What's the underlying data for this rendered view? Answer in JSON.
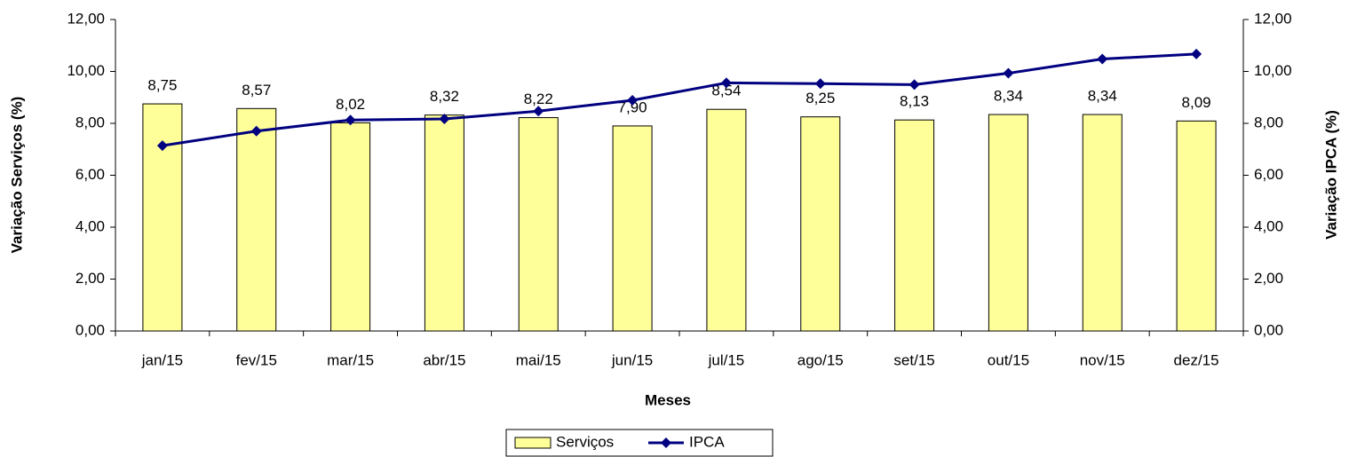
{
  "chart_data": {
    "type": "bar_line",
    "x_label": "Meses",
    "y_label": "Variação Serviços (%)",
    "y2_label": "Variação IPCA (%)",
    "categories": [
      "jan/15",
      "fev/15",
      "mar/15",
      "abr/15",
      "mai/15",
      "jun/15",
      "jul/15",
      "ago/15",
      "set/15",
      "out/15",
      "nov/15",
      "dez/15"
    ],
    "series": [
      {
        "name": "Serviços",
        "type": "bar",
        "color": "#ffff99",
        "values": [
          8.75,
          8.57,
          8.02,
          8.32,
          8.22,
          7.9,
          8.54,
          8.25,
          8.13,
          8.34,
          8.34,
          8.09
        ],
        "value_labels": [
          "8,75",
          "8,57",
          "8,02",
          "8,32",
          "8,22",
          "7,90",
          "8,54",
          "8,25",
          "8,13",
          "8,34",
          "8,34",
          "8,09"
        ]
      },
      {
        "name": "IPCA",
        "type": "line",
        "axis": "y2",
        "color": "#000080",
        "values": [
          7.14,
          7.7,
          8.13,
          8.17,
          8.47,
          8.89,
          9.56,
          9.53,
          9.49,
          9.93,
          10.48,
          10.67
        ]
      }
    ],
    "ylim": [
      0,
      12
    ],
    "yticks": [
      {
        "value": 0,
        "label": "0,00"
      },
      {
        "value": 2,
        "label": "2,00"
      },
      {
        "value": 4,
        "label": "4,00"
      },
      {
        "value": 6,
        "label": "6,00"
      },
      {
        "value": 8,
        "label": "8,00"
      },
      {
        "value": 10,
        "label": "10,00"
      },
      {
        "value": 12,
        "label": "12,00"
      }
    ],
    "y2lim": [
      0,
      12
    ],
    "y2ticks": [
      {
        "value": 0,
        "label": "0,00"
      },
      {
        "value": 2,
        "label": "2,00"
      },
      {
        "value": 4,
        "label": "4,00"
      },
      {
        "value": 6,
        "label": "6,00"
      },
      {
        "value": 8,
        "label": "8,00"
      },
      {
        "value": 10,
        "label": "10,00"
      },
      {
        "value": 12,
        "label": "12,00"
      }
    ],
    "grid": false,
    "legend": "bottom"
  }
}
